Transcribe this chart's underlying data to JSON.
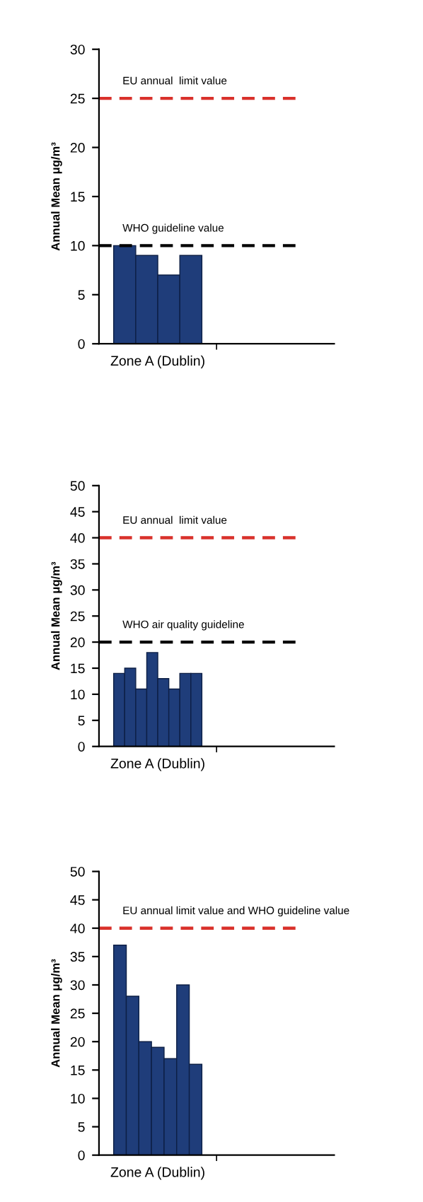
{
  "chart_data": [
    {
      "type": "bar",
      "ylabel": "Annual Mean μg/m³",
      "categories": [
        "Zone A (Dublin)",
        null
      ],
      "ylim": [
        0,
        30
      ],
      "yticks": [
        0,
        5,
        10,
        15,
        20,
        25,
        30
      ],
      "series": [
        {
          "color": "#1f3d7a",
          "values": [
            10,
            null
          ]
        },
        {
          "color": "#1f3d7a",
          "values": [
            9,
            null
          ]
        },
        {
          "color": "#1f3d7a",
          "values": [
            7,
            null
          ]
        },
        {
          "color": "#1f3d7a",
          "values": [
            9,
            null
          ]
        }
      ],
      "ref_lines": [
        {
          "axis": "y",
          "value": 25,
          "label": "EU annual  limit value",
          "color": "#d9312b",
          "line_style": "dashed"
        },
        {
          "axis": "y",
          "value": 10,
          "label": "WHO guideline value",
          "color": "#000000",
          "line_style": "dashed"
        }
      ]
    },
    {
      "type": "bar",
      "ylabel": "Annual Mean μg/m³",
      "categories": [
        "Zone A (Dublin)",
        null
      ],
      "ylim": [
        0,
        50
      ],
      "yticks": [
        0,
        5,
        10,
        15,
        20,
        25,
        30,
        35,
        40,
        45,
        50
      ],
      "series": [
        {
          "color": "#1f3d7a",
          "values": [
            14,
            null
          ]
        },
        {
          "color": "#1f3d7a",
          "values": [
            15,
            null
          ]
        },
        {
          "color": "#1f3d7a",
          "values": [
            11,
            null
          ]
        },
        {
          "color": "#1f3d7a",
          "values": [
            18,
            null
          ]
        },
        {
          "color": "#1f3d7a",
          "values": [
            13,
            null
          ]
        },
        {
          "color": "#1f3d7a",
          "values": [
            11,
            null
          ]
        },
        {
          "color": "#1f3d7a",
          "values": [
            14,
            null
          ]
        },
        {
          "color": "#1f3d7a",
          "values": [
            14,
            null
          ]
        }
      ],
      "ref_lines": [
        {
          "axis": "y",
          "value": 40,
          "label": "EU annual  limit value",
          "color": "#d9312b",
          "line_style": "dashed"
        },
        {
          "axis": "y",
          "value": 20,
          "label": "WHO air quality guideline",
          "color": "#000000",
          "line_style": "dashed"
        }
      ]
    },
    {
      "type": "bar",
      "ylabel": "Annual Mean μg/m³",
      "categories": [
        "Zone A (Dublin)",
        null
      ],
      "ylim": [
        0,
        50
      ],
      "yticks": [
        0,
        5,
        10,
        15,
        20,
        25,
        30,
        35,
        40,
        45,
        50
      ],
      "series": [
        {
          "color": "#1f3d7a",
          "values": [
            37,
            null
          ]
        },
        {
          "color": "#1f3d7a",
          "values": [
            28,
            null
          ]
        },
        {
          "color": "#1f3d7a",
          "values": [
            20,
            null
          ]
        },
        {
          "color": "#1f3d7a",
          "values": [
            19,
            null
          ]
        },
        {
          "color": "#1f3d7a",
          "values": [
            17,
            null
          ]
        },
        {
          "color": "#1f3d7a",
          "values": [
            30,
            null
          ]
        },
        {
          "color": "#1f3d7a",
          "values": [
            16,
            null
          ]
        }
      ],
      "ref_lines": [
        {
          "axis": "y",
          "value": 40,
          "label": "EU annual limit value and WHO guideline value",
          "color": "#d9312b",
          "line_style": "dashed"
        }
      ]
    }
  ]
}
